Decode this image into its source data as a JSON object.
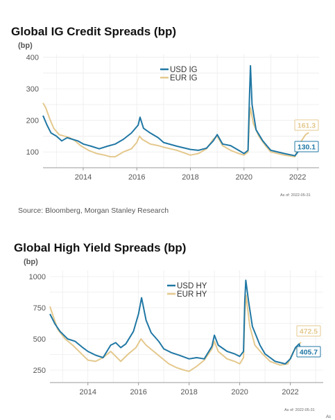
{
  "chart_data": [
    {
      "type": "line",
      "title": "Global IG Credit Spreads (bp)",
      "ylabel": "(bp)",
      "ylim": [
        50,
        410
      ],
      "xlim": [
        2012.5,
        2022.8
      ],
      "xticks": [
        2014,
        2016,
        2018,
        2020,
        2022
      ],
      "yticks": [
        100,
        200,
        300,
        400
      ],
      "legend_position": "top-center",
      "grid": true,
      "as_of": "As of: 2022-05-31",
      "series": [
        {
          "name": "USD IG",
          "color": "#1f77a4",
          "end_label": "130.1",
          "points": [
            [
              2012.5,
              215
            ],
            [
              2012.65,
              185
            ],
            [
              2012.8,
              160
            ],
            [
              2013.0,
              150
            ],
            [
              2013.2,
              135
            ],
            [
              2013.4,
              145
            ],
            [
              2013.6,
              140
            ],
            [
              2013.8,
              135
            ],
            [
              2014.0,
              125
            ],
            [
              2014.3,
              118
            ],
            [
              2014.6,
              110
            ],
            [
              2014.9,
              118
            ],
            [
              2015.2,
              125
            ],
            [
              2015.5,
              140
            ],
            [
              2015.8,
              160
            ],
            [
              2016.05,
              185
            ],
            [
              2016.12,
              210
            ],
            [
              2016.25,
              175
            ],
            [
              2016.5,
              160
            ],
            [
              2016.8,
              145
            ],
            [
              2017.0,
              130
            ],
            [
              2017.5,
              118
            ],
            [
              2018.0,
              108
            ],
            [
              2018.3,
              105
            ],
            [
              2018.6,
              112
            ],
            [
              2018.85,
              135
            ],
            [
              2019.0,
              155
            ],
            [
              2019.2,
              125
            ],
            [
              2019.5,
              120
            ],
            [
              2019.8,
              105
            ],
            [
              2020.0,
              95
            ],
            [
              2020.15,
              105
            ],
            [
              2020.2,
              260
            ],
            [
              2020.24,
              373
            ],
            [
              2020.3,
              250
            ],
            [
              2020.45,
              170
            ],
            [
              2020.7,
              135
            ],
            [
              2021.0,
              105
            ],
            [
              2021.5,
              95
            ],
            [
              2021.9,
              88
            ],
            [
              2022.1,
              110
            ],
            [
              2022.3,
              125
            ],
            [
              2022.42,
              130.1
            ]
          ]
        },
        {
          "name": "EUR IG",
          "color": "#e4c88c",
          "end_label": "161.3",
          "points": [
            [
              2012.5,
              255
            ],
            [
              2012.6,
              240
            ],
            [
              2012.75,
              205
            ],
            [
              2012.9,
              175
            ],
            [
              2013.1,
              155
            ],
            [
              2013.3,
              150
            ],
            [
              2013.5,
              145
            ],
            [
              2013.7,
              135
            ],
            [
              2013.9,
              120
            ],
            [
              2014.2,
              105
            ],
            [
              2014.5,
              95
            ],
            [
              2014.8,
              90
            ],
            [
              2015.0,
              85
            ],
            [
              2015.2,
              85
            ],
            [
              2015.5,
              100
            ],
            [
              2015.8,
              110
            ],
            [
              2016.0,
              130
            ],
            [
              2016.1,
              150
            ],
            [
              2016.2,
              140
            ],
            [
              2016.5,
              125
            ],
            [
              2016.8,
              120
            ],
            [
              2017.0,
              115
            ],
            [
              2017.5,
              105
            ],
            [
              2018.0,
              90
            ],
            [
              2018.3,
              95
            ],
            [
              2018.6,
              110
            ],
            [
              2018.85,
              140
            ],
            [
              2019.0,
              150
            ],
            [
              2019.2,
              120
            ],
            [
              2019.5,
              105
            ],
            [
              2019.8,
              95
            ],
            [
              2020.0,
              90
            ],
            [
              2020.15,
              100
            ],
            [
              2020.2,
              200
            ],
            [
              2020.24,
              240
            ],
            [
              2020.35,
              190
            ],
            [
              2020.55,
              150
            ],
            [
              2020.8,
              120
            ],
            [
              2021.0,
              100
            ],
            [
              2021.5,
              90
            ],
            [
              2021.9,
              85
            ],
            [
              2022.1,
              130
            ],
            [
              2022.3,
              155
            ],
            [
              2022.42,
              161.3
            ]
          ]
        }
      ]
    },
    {
      "type": "line",
      "title": "Global High Yield Spreads (bp)",
      "ylabel": "(bp)",
      "ylim": [
        150,
        1050
      ],
      "xlim": [
        2012.5,
        2023.3
      ],
      "xticks": [
        2014,
        2016,
        2018,
        2020,
        2022
      ],
      "yticks": [
        250,
        500,
        750,
        1000
      ],
      "legend_position": "top-center",
      "grid": true,
      "as_of": "As of: 2022-05-31",
      "series": [
        {
          "name": "USD HY",
          "color": "#1f77a4",
          "end_label": "405.7",
          "points": [
            [
              2012.5,
              700
            ],
            [
              2012.7,
              620
            ],
            [
              2012.9,
              560
            ],
            [
              2013.2,
              500
            ],
            [
              2013.5,
              480
            ],
            [
              2013.8,
              430
            ],
            [
              2014.0,
              400
            ],
            [
              2014.3,
              370
            ],
            [
              2014.6,
              350
            ],
            [
              2014.9,
              450
            ],
            [
              2015.1,
              470
            ],
            [
              2015.3,
              430
            ],
            [
              2015.5,
              460
            ],
            [
              2015.8,
              560
            ],
            [
              2016.0,
              700
            ],
            [
              2016.12,
              830
            ],
            [
              2016.3,
              650
            ],
            [
              2016.5,
              550
            ],
            [
              2016.8,
              480
            ],
            [
              2017.0,
              420
            ],
            [
              2017.3,
              390
            ],
            [
              2017.6,
              370
            ],
            [
              2018.0,
              340
            ],
            [
              2018.3,
              350
            ],
            [
              2018.6,
              340
            ],
            [
              2018.9,
              440
            ],
            [
              2019.0,
              530
            ],
            [
              2019.15,
              450
            ],
            [
              2019.5,
              400
            ],
            [
              2019.8,
              380
            ],
            [
              2020.0,
              360
            ],
            [
              2020.15,
              400
            ],
            [
              2020.2,
              800
            ],
            [
              2020.24,
              970
            ],
            [
              2020.35,
              800
            ],
            [
              2020.5,
              600
            ],
            [
              2020.8,
              450
            ],
            [
              2021.0,
              380
            ],
            [
              2021.4,
              320
            ],
            [
              2021.8,
              300
            ],
            [
              2022.0,
              340
            ],
            [
              2022.2,
              430
            ],
            [
              2022.35,
              460
            ],
            [
              2022.42,
              405.7
            ]
          ]
        },
        {
          "name": "EUR HY",
          "color": "#e4c88c",
          "end_label": "472.5",
          "points": [
            [
              2012.5,
              760
            ],
            [
              2012.6,
              700
            ],
            [
              2012.8,
              580
            ],
            [
              2013.1,
              500
            ],
            [
              2013.4,
              450
            ],
            [
              2013.7,
              390
            ],
            [
              2014.0,
              330
            ],
            [
              2014.3,
              320
            ],
            [
              2014.6,
              350
            ],
            [
              2014.9,
              400
            ],
            [
              2015.1,
              360
            ],
            [
              2015.3,
              320
            ],
            [
              2015.6,
              380
            ],
            [
              2015.9,
              430
            ],
            [
              2016.1,
              500
            ],
            [
              2016.3,
              450
            ],
            [
              2016.6,
              400
            ],
            [
              2016.9,
              350
            ],
            [
              2017.2,
              300
            ],
            [
              2017.5,
              270
            ],
            [
              2017.8,
              250
            ],
            [
              2018.0,
              240
            ],
            [
              2018.3,
              280
            ],
            [
              2018.6,
              330
            ],
            [
              2018.9,
              420
            ],
            [
              2019.0,
              480
            ],
            [
              2019.15,
              400
            ],
            [
              2019.5,
              340
            ],
            [
              2019.8,
              320
            ],
            [
              2020.0,
              300
            ],
            [
              2020.15,
              350
            ],
            [
              2020.2,
              700
            ],
            [
              2020.25,
              850
            ],
            [
              2020.4,
              600
            ],
            [
              2020.6,
              450
            ],
            [
              2020.9,
              380
            ],
            [
              2021.2,
              320
            ],
            [
              2021.6,
              290
            ],
            [
              2021.9,
              300
            ],
            [
              2022.1,
              390
            ],
            [
              2022.3,
              450
            ],
            [
              2022.42,
              472.5
            ]
          ]
        }
      ]
    }
  ],
  "source": "Source: Bloomberg, Morgan Stanley Research",
  "edge_cut_text": "As"
}
